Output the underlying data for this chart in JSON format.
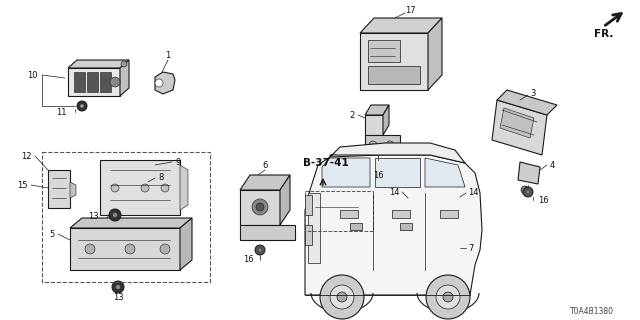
{
  "bg_color": "#ffffff",
  "diagram_code": "T0A4B1380",
  "line_color": "#1a1a1a",
  "label_color": "#111111",
  "dashed_color": "#555555"
}
